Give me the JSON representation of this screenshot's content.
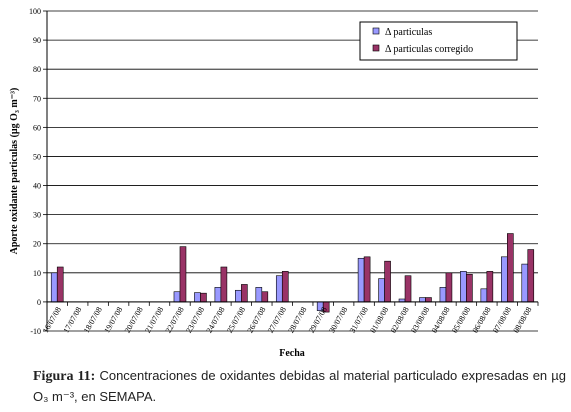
{
  "chart_data": {
    "type": "bar",
    "xlabel": "Fecha",
    "ylabel": "Aporte oxidante particulas (µg O₃ m⁻³)",
    "ylim": [
      -10,
      100
    ],
    "yticks": [
      -10,
      0,
      10,
      20,
      30,
      40,
      50,
      60,
      70,
      80,
      90,
      100
    ],
    "grid": true,
    "legend_position": "top-right",
    "categories": [
      "16/07/08",
      "17/07/08",
      "18/07/08",
      "19/07/08",
      "20/07/08",
      "21/07/08",
      "22/07/08",
      "23/07/08",
      "24/07/08",
      "25/07/08",
      "26/07/08",
      "27/07/08",
      "28/07/08",
      "29/07/08",
      "30/07/08",
      "31/07/08",
      "01/08/08",
      "02/08/08",
      "03/08/08",
      "04/08/08",
      "05/08/08",
      "06/08/08",
      "07/08/08",
      "08/08/08"
    ],
    "series": [
      {
        "name": "Δ particulas",
        "color": "#9999ff",
        "values": [
          10,
          null,
          null,
          null,
          null,
          null,
          3.5,
          3.2,
          5,
          4,
          5,
          9,
          null,
          -3,
          null,
          15,
          8,
          1,
          1.5,
          5,
          10.5,
          4.5,
          15.5,
          13
        ]
      },
      {
        "name": "Δ particulas corregido",
        "color": "#993366",
        "values": [
          12,
          null,
          null,
          null,
          null,
          null,
          19,
          3,
          12,
          6,
          3.5,
          10.5,
          null,
          -3.5,
          null,
          15.5,
          14,
          9,
          1.5,
          10,
          9.5,
          10.5,
          23.5,
          18
        ]
      }
    ]
  },
  "caption": {
    "label": "Figura 11:",
    "text": " Concentraciones de oxidantes debidas al material particulado expresadas en µg O₃ m⁻³, en SEMAPA."
  }
}
